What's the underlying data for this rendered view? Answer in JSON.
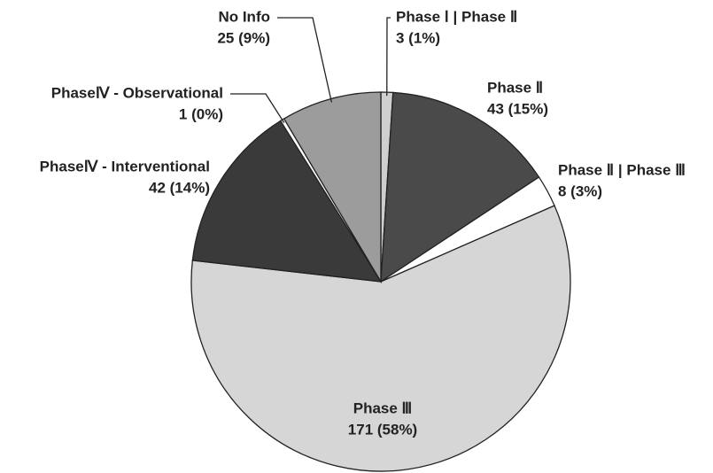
{
  "chart_data": {
    "type": "pie",
    "categories": [
      "Phase Ⅰ | Phase Ⅱ",
      "Phase Ⅱ",
      "Phase Ⅱ | Phase Ⅲ",
      "Phase Ⅲ",
      "PhaseⅣ - Interventional",
      "PhaseⅣ - Observational",
      "No Info"
    ],
    "values": [
      3,
      43,
      8,
      171,
      42,
      1,
      25
    ],
    "value_labels": [
      "3 (1%)",
      "43 (15%)",
      "8 (3%)",
      "171 (58%)",
      "42 (14%)",
      "1 (0%)",
      "25 (9%)"
    ],
    "colors": [
      "#cfcfcf",
      "#4a4a4a",
      "#ffffff",
      "#d6d6d6",
      "#3a3a3a",
      "#ffffff",
      "#9c9c9c"
    ]
  }
}
